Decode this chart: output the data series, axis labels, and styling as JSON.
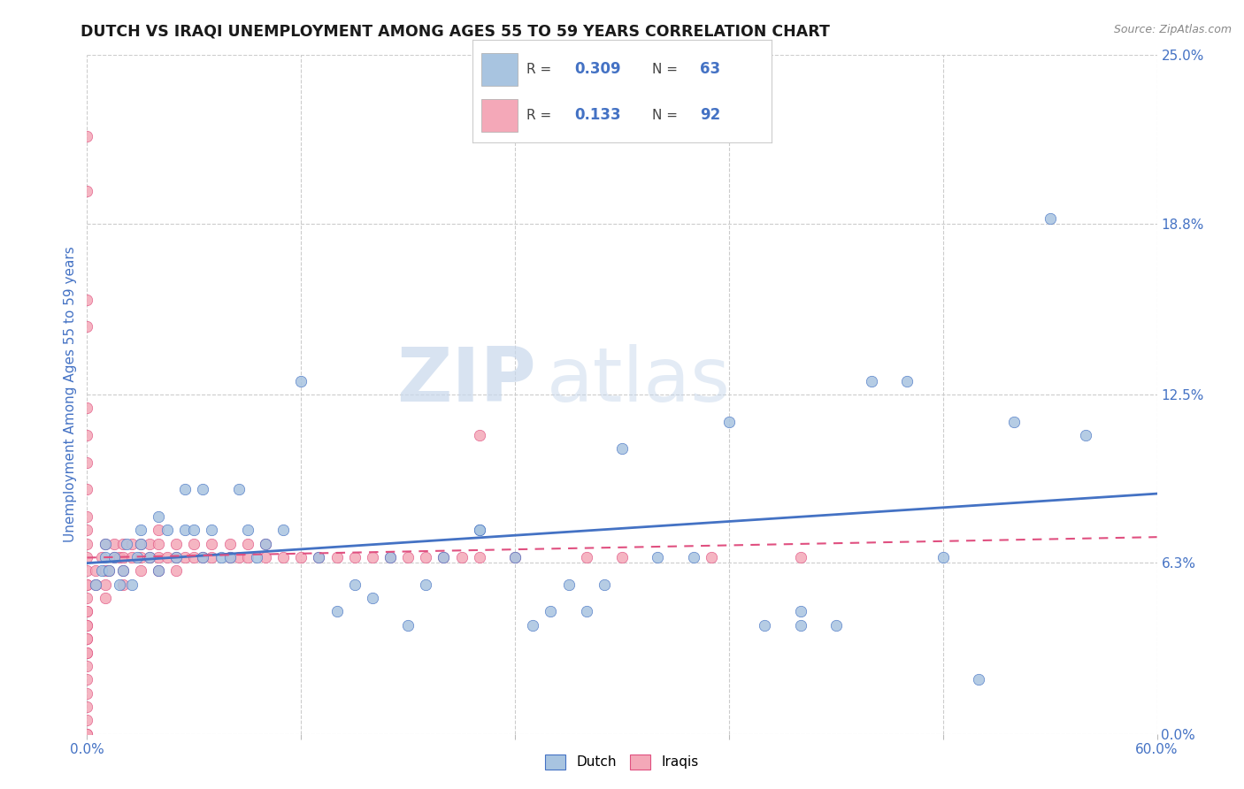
{
  "title": "DUTCH VS IRAQI UNEMPLOYMENT AMONG AGES 55 TO 59 YEARS CORRELATION CHART",
  "source": "Source: ZipAtlas.com",
  "ylabel": "Unemployment Among Ages 55 to 59 years",
  "xlim": [
    0.0,
    0.6
  ],
  "ylim": [
    0.0,
    0.25
  ],
  "xticks": [
    0.0,
    0.12,
    0.24,
    0.36,
    0.48,
    0.6
  ],
  "xtick_labels": [
    "0.0%",
    "",
    "",
    "",
    "",
    "60.0%"
  ],
  "ytick_labels_right": [
    "0.0%",
    "6.3%",
    "12.5%",
    "18.8%",
    "25.0%"
  ],
  "ytick_vals_right": [
    0.0,
    0.063,
    0.125,
    0.188,
    0.25
  ],
  "dutch_scatter_color": "#a8c4e0",
  "dutch_line_color": "#4472c4",
  "iraqi_scatter_color": "#f4a8b8",
  "iraqi_line_color": "#e05080",
  "dutch_R": "0.309",
  "dutch_N": "63",
  "iraqi_R": "0.133",
  "iraqi_N": "92",
  "watermark_zip": "ZIP",
  "watermark_atlas": "atlas",
  "title_color": "#1a1a1a",
  "title_fontsize": 12.5,
  "label_color": "#4472c4",
  "grid_color": "#cccccc",
  "background_color": "#ffffff",
  "dutch_points_x": [
    0.005,
    0.008,
    0.01,
    0.01,
    0.012,
    0.015,
    0.018,
    0.02,
    0.022,
    0.025,
    0.028,
    0.03,
    0.03,
    0.035,
    0.04,
    0.04,
    0.045,
    0.05,
    0.055,
    0.055,
    0.06,
    0.065,
    0.065,
    0.07,
    0.075,
    0.08,
    0.085,
    0.09,
    0.095,
    0.1,
    0.11,
    0.12,
    0.13,
    0.14,
    0.15,
    0.16,
    0.17,
    0.18,
    0.19,
    0.2,
    0.22,
    0.22,
    0.24,
    0.25,
    0.26,
    0.27,
    0.28,
    0.29,
    0.3,
    0.32,
    0.34,
    0.36,
    0.38,
    0.4,
    0.4,
    0.42,
    0.44,
    0.46,
    0.48,
    0.5,
    0.52,
    0.54,
    0.56
  ],
  "dutch_points_y": [
    0.055,
    0.06,
    0.065,
    0.07,
    0.06,
    0.065,
    0.055,
    0.06,
    0.07,
    0.055,
    0.065,
    0.07,
    0.075,
    0.065,
    0.06,
    0.08,
    0.075,
    0.065,
    0.075,
    0.09,
    0.075,
    0.065,
    0.09,
    0.075,
    0.065,
    0.065,
    0.09,
    0.075,
    0.065,
    0.07,
    0.075,
    0.13,
    0.065,
    0.045,
    0.055,
    0.05,
    0.065,
    0.04,
    0.055,
    0.065,
    0.075,
    0.075,
    0.065,
    0.04,
    0.045,
    0.055,
    0.045,
    0.055,
    0.105,
    0.065,
    0.065,
    0.115,
    0.04,
    0.04,
    0.045,
    0.04,
    0.13,
    0.13,
    0.065,
    0.02,
    0.115,
    0.19,
    0.11
  ],
  "iraqi_points_x": [
    0.0,
    0.0,
    0.0,
    0.0,
    0.0,
    0.0,
    0.0,
    0.0,
    0.0,
    0.0,
    0.0,
    0.0,
    0.0,
    0.0,
    0.0,
    0.0,
    0.0,
    0.0,
    0.0,
    0.0,
    0.0,
    0.0,
    0.0,
    0.0,
    0.0,
    0.0,
    0.0,
    0.0,
    0.0,
    0.0,
    0.0,
    0.005,
    0.005,
    0.008,
    0.01,
    0.01,
    0.01,
    0.01,
    0.012,
    0.015,
    0.015,
    0.018,
    0.02,
    0.02,
    0.02,
    0.02,
    0.025,
    0.025,
    0.03,
    0.03,
    0.03,
    0.035,
    0.035,
    0.04,
    0.04,
    0.04,
    0.04,
    0.045,
    0.05,
    0.05,
    0.05,
    0.055,
    0.06,
    0.06,
    0.065,
    0.07,
    0.07,
    0.08,
    0.08,
    0.085,
    0.09,
    0.09,
    0.1,
    0.1,
    0.11,
    0.12,
    0.13,
    0.14,
    0.15,
    0.16,
    0.17,
    0.18,
    0.19,
    0.2,
    0.21,
    0.22,
    0.22,
    0.24,
    0.28,
    0.3,
    0.35,
    0.4
  ],
  "iraqi_points_y": [
    0.055,
    0.06,
    0.065,
    0.045,
    0.04,
    0.035,
    0.03,
    0.025,
    0.02,
    0.015,
    0.01,
    0.005,
    0.0,
    0.0,
    0.07,
    0.075,
    0.08,
    0.09,
    0.1,
    0.11,
    0.12,
    0.15,
    0.16,
    0.2,
    0.22,
    0.055,
    0.05,
    0.045,
    0.04,
    0.035,
    0.03,
    0.055,
    0.06,
    0.065,
    0.05,
    0.055,
    0.06,
    0.07,
    0.06,
    0.065,
    0.07,
    0.065,
    0.055,
    0.06,
    0.065,
    0.07,
    0.065,
    0.07,
    0.06,
    0.065,
    0.07,
    0.065,
    0.07,
    0.06,
    0.065,
    0.07,
    0.075,
    0.065,
    0.06,
    0.065,
    0.07,
    0.065,
    0.065,
    0.07,
    0.065,
    0.065,
    0.07,
    0.065,
    0.07,
    0.065,
    0.065,
    0.07,
    0.065,
    0.07,
    0.065,
    0.065,
    0.065,
    0.065,
    0.065,
    0.065,
    0.065,
    0.065,
    0.065,
    0.065,
    0.065,
    0.11,
    0.065,
    0.065,
    0.065,
    0.065,
    0.065,
    0.065
  ]
}
